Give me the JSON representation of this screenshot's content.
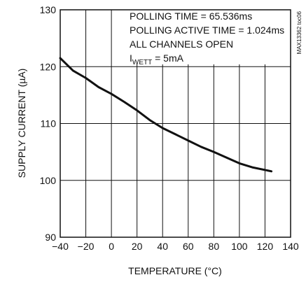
{
  "chart_data": {
    "type": "line",
    "title": "",
    "xlabel": "TEMPERATURE (°C)",
    "ylabel": "SUPPLY CURRENT (µA)",
    "xlim": [
      -40,
      140
    ],
    "ylim": [
      90,
      130
    ],
    "xticks": [
      -40,
      -20,
      0,
      20,
      40,
      60,
      80,
      100,
      120,
      140
    ],
    "yticks": [
      90,
      100,
      110,
      120,
      130
    ],
    "grid": true,
    "series": [
      {
        "x": [
          -40,
          -30,
          -20,
          -10,
          0,
          10,
          20,
          30,
          40,
          50,
          60,
          70,
          80,
          90,
          100,
          110,
          125
        ],
        "y": [
          121.5,
          119.3,
          118,
          116.4,
          115.2,
          113.8,
          112.3,
          110.6,
          109.2,
          108.1,
          107,
          105.9,
          105,
          104,
          103,
          102.3,
          101.6
        ]
      }
    ],
    "annotations": {
      "line1": "POLLING TIME = 65.536ms",
      "line2": "POLLING ACTIVE TIME = 1.024ms",
      "line3": "ALL CHANNELS OPEN",
      "line4_main": "I",
      "line4_sub": "WETT",
      "line4_rest": " = 5mA"
    },
    "watermark": "MAX13362 toc06"
  }
}
